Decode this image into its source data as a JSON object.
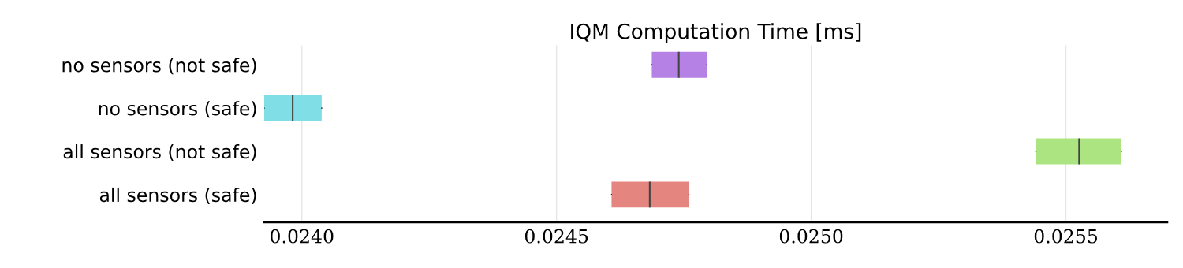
{
  "chart_data": {
    "type": "box",
    "orientation": "horizontal",
    "title": "IQM Computation Time [ms]",
    "categories": [
      "no sensors (not safe)",
      "no sensors (safe)",
      "all sensors (not safe)",
      "all sensors (safe)"
    ],
    "colors": [
      "#b681e4",
      "#80dfe6",
      "#abe481",
      "#e4857f"
    ],
    "boxes": [
      {
        "low": 0.024687,
        "q1": 0.024687,
        "median": 0.02474,
        "q3": 0.024795,
        "high": 0.024795
      },
      {
        "low": 0.023926,
        "q1": 0.023926,
        "median": 0.023982,
        "q3": 0.024039,
        "high": 0.024039
      },
      {
        "low": 0.025441,
        "q1": 0.025441,
        "median": 0.025526,
        "q3": 0.025609,
        "high": 0.025609
      },
      {
        "low": 0.024608,
        "q1": 0.024608,
        "median": 0.024683,
        "q3": 0.02476,
        "high": 0.02476
      }
    ],
    "xlim": [
      0.023926,
      0.025699
    ],
    "xticks": [
      {
        "value": 0.024,
        "label": "0.0240"
      },
      {
        "value": 0.0245,
        "label": "0.0245"
      },
      {
        "value": 0.025,
        "label": "0.0250"
      },
      {
        "value": 0.0255,
        "label": "0.0255"
      }
    ],
    "grid": "x"
  }
}
